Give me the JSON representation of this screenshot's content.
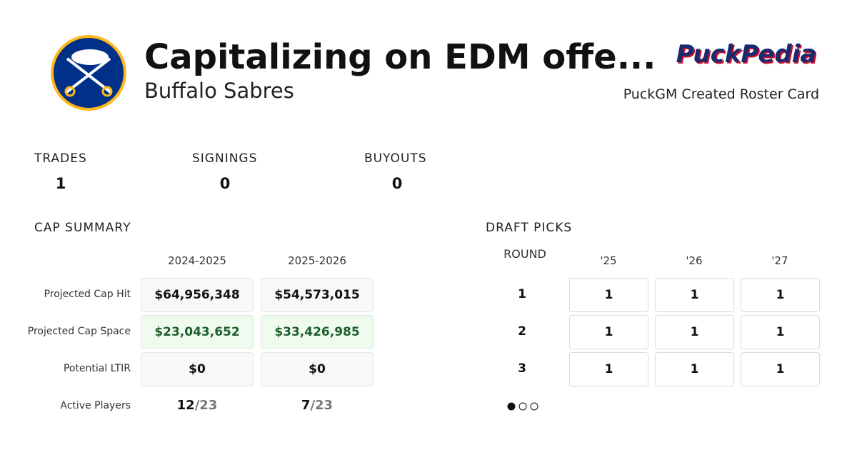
{
  "header": {
    "title": "Capitalizing on EDM offe...",
    "team": "Buffalo Sabres",
    "brand": "PuckPedia",
    "tagline": "PuckGM Created Roster Card"
  },
  "stats": [
    {
      "label": "TRADES",
      "value": "1"
    },
    {
      "label": "SIGNINGS",
      "value": "0"
    },
    {
      "label": "BUYOUTS",
      "value": "0"
    }
  ],
  "cap_summary": {
    "title": "CAP SUMMARY",
    "columns": [
      "2024-2025",
      "2025-2026"
    ],
    "rows": [
      {
        "label": "Projected Cap Hit",
        "values": [
          "$64,956,348",
          "$54,573,015"
        ]
      },
      {
        "label": "Projected Cap Space",
        "values": [
          "$23,043,652",
          "$33,426,985"
        ]
      },
      {
        "label": "Potential LTIR",
        "values": [
          "$0",
          "$0"
        ]
      }
    ],
    "active_players": {
      "label": "Active Players",
      "values": [
        {
          "count": "12",
          "separator": "/",
          "max": "23"
        },
        {
          "count": "7",
          "separator": "/",
          "max": "23"
        }
      ]
    }
  },
  "draft_picks": {
    "title": "DRAFT PICKS",
    "round_label": "ROUND",
    "years": [
      "'25",
      "'26",
      "'27"
    ],
    "rows": [
      {
        "round": "1",
        "picks": [
          "1",
          "1",
          "1"
        ]
      },
      {
        "round": "2",
        "picks": [
          "1",
          "1",
          "1"
        ]
      },
      {
        "round": "3",
        "picks": [
          "1",
          "1",
          "1"
        ]
      }
    ]
  }
}
